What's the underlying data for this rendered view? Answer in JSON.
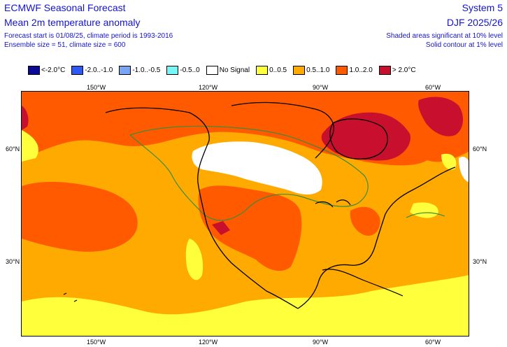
{
  "header": {
    "title": "ECMWF Seasonal Forecast",
    "subtitle": "Mean 2m temperature anomaly",
    "line3": "Forecast start is 01/08/25, climate period is 1993-2016",
    "line4": "Ensemble size = 51, climate size = 600",
    "system": "System 5",
    "season": "DJF 2025/26",
    "sig1": "Shaded areas significant at 10% level",
    "sig2": "Solid contour at 1% level"
  },
  "legend": [
    {
      "label": "<-2.0°C",
      "color": "#0a0a96"
    },
    {
      "label": "-2.0..-1.0",
      "color": "#2d5af5"
    },
    {
      "label": "-1.0..-0.5",
      "color": "#78a5f5"
    },
    {
      "label": "-0.5..0",
      "color": "#78f5f5"
    },
    {
      "label": "No Signal",
      "color": "#ffffff"
    },
    {
      "label": "0..0.5",
      "color": "#ffff3c"
    },
    {
      "label": "0.5..1.0",
      "color": "#ffaa00"
    },
    {
      "label": "1.0..2.0",
      "color": "#ff5a00"
    },
    {
      "label": "> 2.0°C",
      "color": "#c8102e"
    }
  ],
  "axes": {
    "lon_top": [
      "150°W",
      "120°W",
      "90°W",
      "60°W"
    ],
    "lon_bottom": [
      "150°W",
      "120°W",
      "90°W",
      "60°W"
    ],
    "lat_left": [
      "60°N",
      "30°N"
    ],
    "lat_right": [
      "60°N",
      "30°N"
    ]
  }
}
